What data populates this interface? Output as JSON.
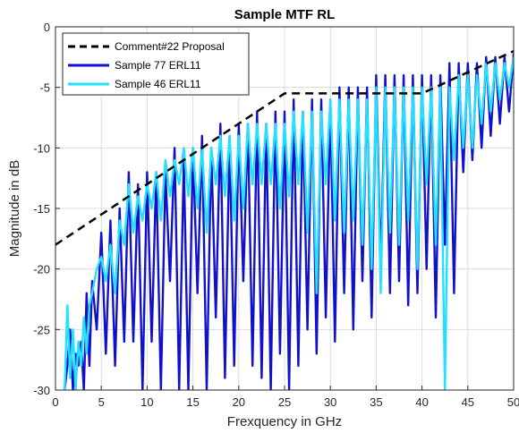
{
  "chart_data": {
    "type": "line",
    "title": "Sample MTF RL",
    "xlabel": "Frexquency in GHz",
    "ylabel": "Magnitude in dB",
    "xlim": [
      0,
      50
    ],
    "ylim": [
      -30,
      0
    ],
    "xticks": [
      0,
      5,
      10,
      15,
      20,
      25,
      30,
      35,
      40,
      45,
      50
    ],
    "yticks": [
      0,
      -5,
      -10,
      -15,
      -20,
      -25,
      -30
    ],
    "grid": true,
    "legend_position": "top-left",
    "series": [
      {
        "name": "Comment#22 Proposal",
        "color": "#000000",
        "dash": "dashed",
        "x": [
          0,
          25,
          40,
          50
        ],
        "y": [
          -18,
          -5.5,
          -5.5,
          -2
        ]
      },
      {
        "name": "Sample 77 ERL11",
        "color": "#1111cc",
        "dash": "solid",
        "x": [
          1.0,
          1.3,
          1.6,
          1.9,
          2.2,
          2.5,
          2.8,
          3.1,
          3.4,
          3.7,
          4.0,
          4.5,
          5.0,
          5.5,
          6.0,
          6.5,
          7.0,
          7.5,
          8.0,
          8.5,
          9.0,
          9.5,
          10.0,
          10.5,
          11.0,
          11.5,
          12.0,
          12.5,
          13.0,
          13.5,
          14.0,
          14.5,
          15.0,
          15.5,
          16.0,
          16.5,
          17.0,
          17.5,
          18.0,
          18.5,
          19.0,
          19.5,
          20.0,
          20.5,
          21.0,
          21.5,
          22.0,
          22.5,
          23.0,
          23.5,
          24.0,
          24.5,
          25.0,
          25.5,
          26.0,
          26.5,
          27.0,
          27.5,
          28.0,
          28.5,
          29.0,
          29.5,
          30.0,
          30.5,
          31.0,
          31.5,
          32.0,
          32.5,
          33.0,
          33.5,
          34.0,
          34.5,
          35.0,
          35.5,
          36.0,
          36.5,
          37.0,
          37.5,
          38.0,
          38.5,
          39.0,
          39.5,
          40.0,
          40.5,
          41.0,
          41.5,
          42.0,
          42.5,
          43.0,
          43.5,
          44.0,
          44.5,
          45.0,
          45.5,
          46.0,
          46.5,
          47.0,
          47.5,
          48.0,
          48.5,
          49.0,
          49.5,
          50.0
        ],
        "y": [
          -30,
          -28,
          -25,
          -30,
          -27,
          -28,
          -26,
          -30,
          -22,
          -28,
          -21,
          -25,
          -17,
          -27,
          -16,
          -28,
          -15,
          -26,
          -12,
          -26,
          -13,
          -30,
          -12,
          -26,
          -12,
          -30,
          -12,
          -21,
          -10,
          -30,
          -11,
          -30,
          -10,
          -22,
          -9,
          -30,
          -10,
          -24,
          -8,
          -29,
          -9,
          -28,
          -8,
          -21,
          -8,
          -28,
          -7,
          -29,
          -8,
          -30,
          -7,
          -27,
          -7,
          -30,
          -6,
          -28,
          -7,
          -25,
          -6,
          -27,
          -6,
          -24,
          -6,
          -26,
          -5,
          -22,
          -5,
          -25,
          -5,
          -21,
          -5,
          -24,
          -4,
          -20,
          -4,
          -22,
          -4,
          -21,
          -4,
          -23,
          -4,
          -22,
          -4,
          -20,
          -4,
          -24,
          -4,
          -18,
          -3,
          -22,
          -3,
          -12,
          -3,
          -11,
          -3,
          -10,
          -2.5,
          -9,
          -2.5,
          -8,
          -2.5,
          -7,
          -2.2
        ]
      },
      {
        "name": "Sample 46 ERL11",
        "color": "#22e0ff",
        "dash": "solid",
        "x": [
          1.0,
          1.3,
          1.6,
          1.9,
          2.2,
          2.5,
          2.8,
          3.1,
          3.4,
          3.7,
          4.0,
          4.5,
          5.0,
          5.5,
          6.0,
          6.5,
          7.0,
          7.5,
          8.0,
          8.5,
          9.0,
          9.5,
          10.0,
          10.5,
          11.0,
          11.5,
          12.0,
          12.5,
          13.0,
          13.5,
          14.0,
          14.5,
          15.0,
          15.5,
          16.0,
          16.5,
          17.0,
          17.5,
          18.0,
          18.5,
          19.0,
          19.5,
          20.0,
          20.5,
          21.0,
          21.5,
          22.0,
          22.5,
          23.0,
          23.5,
          24.0,
          24.5,
          25.0,
          25.5,
          26.0,
          26.5,
          27.0,
          27.5,
          28.0,
          28.5,
          29.0,
          29.5,
          30.0,
          30.5,
          31.0,
          31.5,
          32.0,
          32.5,
          33.0,
          33.5,
          34.0,
          34.5,
          35.0,
          35.5,
          36.0,
          36.5,
          37.0,
          37.5,
          38.0,
          38.5,
          39.0,
          39.5,
          40.0,
          40.5,
          41.0,
          41.5,
          42.0,
          42.5,
          43.0,
          43.5,
          44.0,
          44.5,
          45.0,
          45.5,
          46.0,
          46.5,
          47.0,
          47.5,
          48.0,
          48.5,
          49.0,
          49.5,
          50.0
        ],
        "y": [
          -30,
          -23,
          -29,
          -25,
          -30,
          -26,
          -28,
          -24,
          -27,
          -23,
          -22,
          -20,
          -19,
          -21,
          -18,
          -22,
          -16,
          -18,
          -13,
          -17,
          -14,
          -16,
          -13,
          -15,
          -12,
          -16,
          -11,
          -14,
          -11,
          -13,
          -10,
          -14,
          -10,
          -15,
          -10,
          -17,
          -10,
          -13,
          -9,
          -14,
          -9,
          -16,
          -9,
          -15,
          -8,
          -13,
          -8,
          -13,
          -8,
          -13,
          -8,
          -15,
          -8,
          -14,
          -7,
          -13,
          -7,
          -17,
          -7,
          -22,
          -7,
          -13,
          -6,
          -16,
          -6,
          -17,
          -6,
          -16,
          -6,
          -18,
          -6,
          -20,
          -5,
          -22,
          -5,
          -17,
          -5,
          -18,
          -5,
          -16,
          -5,
          -20,
          -5,
          -13,
          -5,
          -18,
          -5,
          -30,
          -5,
          -11,
          -4,
          -10,
          -4,
          -10,
          -4,
          -8,
          -3,
          -7,
          -3,
          -6,
          -3,
          -5,
          -2.5
        ]
      }
    ]
  }
}
